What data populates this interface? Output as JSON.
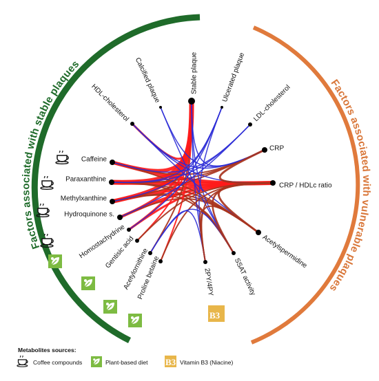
{
  "groups": {
    "stable": {
      "title": "Factors associated with stable plaques",
      "color": "#1f6b2a"
    },
    "vulnerable": {
      "title": "Factors associated with vulnerable plaques",
      "color": "#d9773a"
    }
  },
  "colors": {
    "positive": "#ff1a1a",
    "negative": "#2b2bd6",
    "mixed": "#a8341e",
    "plant": "#7dbb42",
    "b3": "#e8b64a"
  },
  "nodes": [
    {
      "id": "caffeine",
      "label": "Caffeine",
      "icon": "coffee-cup"
    },
    {
      "id": "paraxanthine",
      "label": "Paraxanthine",
      "icon": "coffee-cup"
    },
    {
      "id": "methylxanthine",
      "label": "Methylxanthine",
      "icon": "coffee-cup"
    },
    {
      "id": "hydroquinone",
      "label": "Hydroquinone s.",
      "icon": "coffee-cup"
    },
    {
      "id": "homostachydrine",
      "label": "Homostachydrine",
      "icon": "plant-leaf"
    },
    {
      "id": "gentisic",
      "label": "Gentisic acid",
      "icon": "plant-leaf"
    },
    {
      "id": "acetylornithine",
      "label": "Acetylornithine",
      "icon": "plant-leaf"
    },
    {
      "id": "proline",
      "label": "Proline betaine",
      "icon": "plant-leaf"
    },
    {
      "id": "hdl",
      "label": "HDL-cholesterol"
    },
    {
      "id": "calcified",
      "label": "Calcified plaque"
    },
    {
      "id": "stable",
      "label": "Stable plaque"
    },
    {
      "id": "ulcerated",
      "label": "Ulcerated plaque"
    },
    {
      "id": "ldl",
      "label": "LDL-cholesterol"
    },
    {
      "id": "crp",
      "label": "CRP"
    },
    {
      "id": "crphdl",
      "label": "CRP / HDLc ratio"
    },
    {
      "id": "acetylspermidine",
      "label": "Acetylspermidine"
    },
    {
      "id": "ssat",
      "label": "SSAT activity"
    },
    {
      "id": "py",
      "label": "2PY/4PY",
      "icon": "b3"
    }
  ],
  "legend": {
    "title": "Metabolites sources:",
    "items": [
      {
        "label": "Coffee compounds",
        "icon": "coffee-cup"
      },
      {
        "label": "Plant-based diet",
        "icon": "plant-leaf"
      },
      {
        "label": "Vitamin B3 (Niacine)",
        "icon": "b3"
      }
    ]
  },
  "b3_text": "B3"
}
